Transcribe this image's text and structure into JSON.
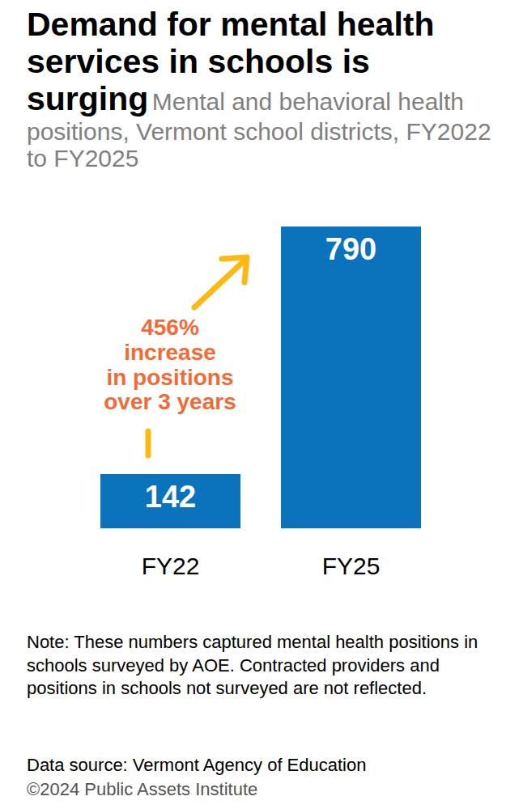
{
  "chart_data": {
    "type": "bar",
    "title": "Demand for mental health services in schools is surging",
    "subtitle": "Mental and behavioral health positions, Vermont school districts, FY2022 to FY2025",
    "categories": [
      "FY22",
      "FY25"
    ],
    "values": [
      142,
      790
    ],
    "color": "#0b73bb",
    "ylim": [
      0,
      790
    ],
    "data_labels": true,
    "tick_labels": "x",
    "annotation": "456%\nincrease\nin positions\nover 3 years",
    "note": "Note: These numbers captured mental health positions in schools surveyed by AOE. Contracted providers and positions in schools not surveyed are not reflected.",
    "source": "Data source: Vermont Agency of Education",
    "copyright": "©2024 Public Assets Institute"
  }
}
